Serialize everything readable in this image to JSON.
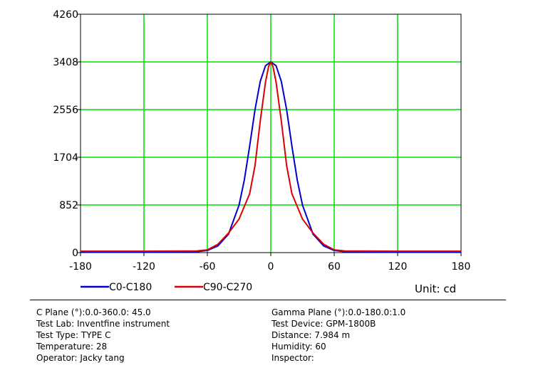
{
  "chart_data": {
    "type": "line",
    "title": "",
    "xlabel": "",
    "ylabel": "",
    "xlim": [
      -180,
      180
    ],
    "ylim": [
      0,
      4260
    ],
    "xticks": [
      -180,
      -120,
      -60,
      0,
      60,
      120,
      180
    ],
    "yticks": [
      0,
      852,
      1704,
      2556,
      3408,
      4260
    ],
    "grid": true,
    "legend_position": "bottom-left",
    "series": [
      {
        "name": "C0-C180",
        "color": "#0000cc",
        "x": [
          -180,
          -120,
          -70,
          -60,
          -50,
          -40,
          -30,
          -25,
          -20,
          -15,
          -10,
          -5,
          0,
          5,
          10,
          15,
          20,
          25,
          30,
          40,
          50,
          60,
          70,
          120,
          180
        ],
        "y": [
          10,
          10,
          15,
          40,
          120,
          330,
          850,
          1300,
          1900,
          2550,
          3060,
          3340,
          3408,
          3340,
          3060,
          2550,
          1900,
          1300,
          850,
          330,
          120,
          40,
          15,
          10,
          10
        ]
      },
      {
        "name": "C90-C270",
        "color": "#dd0000",
        "x": [
          -180,
          -120,
          -70,
          -60,
          -50,
          -40,
          -30,
          -20,
          -15,
          -10,
          -5,
          -2,
          0,
          2,
          5,
          10,
          15,
          20,
          30,
          40,
          50,
          60,
          70,
          120,
          180
        ],
        "y": [
          25,
          25,
          30,
          50,
          150,
          350,
          600,
          1050,
          1550,
          2350,
          3050,
          3330,
          3408,
          3330,
          3050,
          2350,
          1550,
          1050,
          600,
          350,
          150,
          50,
          30,
          25,
          25
        ]
      }
    ]
  },
  "legend": {
    "unit_label": "Unit: cd"
  },
  "info": {
    "left": [
      "C Plane (°):0.0-360.0: 45.0",
      "Test Lab: Inventfine instrument",
      "Test Type: TYPE C",
      "Temperature: 28",
      "Operator: Jacky tang"
    ],
    "right": [
      "Gamma Plane (°):0.0-180.0:1.0",
      "Test Device: GPM-1800B",
      "Distance: 7.984 m",
      "Humidity: 60",
      "Inspector:"
    ]
  }
}
